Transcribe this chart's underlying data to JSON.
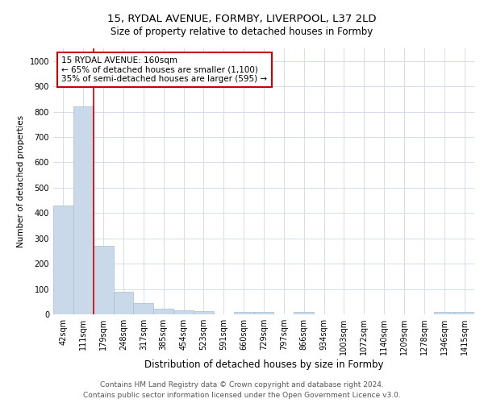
{
  "title1": "15, RYDAL AVENUE, FORMBY, LIVERPOOL, L37 2LD",
  "title2": "Size of property relative to detached houses in Formby",
  "xlabel": "Distribution of detached houses by size in Formby",
  "ylabel": "Number of detached properties",
  "categories": [
    "42sqm",
    "111sqm",
    "179sqm",
    "248sqm",
    "317sqm",
    "385sqm",
    "454sqm",
    "523sqm",
    "591sqm",
    "660sqm",
    "729sqm",
    "797sqm",
    "866sqm",
    "934sqm",
    "1003sqm",
    "1072sqm",
    "1140sqm",
    "1209sqm",
    "1278sqm",
    "1346sqm",
    "1415sqm"
  ],
  "values": [
    430,
    820,
    270,
    90,
    46,
    22,
    16,
    12,
    0,
    10,
    10,
    0,
    9,
    0,
    0,
    0,
    0,
    0,
    0,
    8,
    8
  ],
  "bar_color": "#c9d9ea",
  "bar_edge_color": "#a8bdd0",
  "vline_x": 1.5,
  "vline_color": "#cc0000",
  "annotation_text": "15 RYDAL AVENUE: 160sqm\n← 65% of detached houses are smaller (1,100)\n35% of semi-detached houses are larger (595) →",
  "annotation_box_color": "#ffffff",
  "annotation_box_edge": "#cc0000",
  "ylim": [
    0,
    1050
  ],
  "yticks": [
    0,
    100,
    200,
    300,
    400,
    500,
    600,
    700,
    800,
    900,
    1000
  ],
  "footnote": "Contains HM Land Registry data © Crown copyright and database right 2024.\nContains public sector information licensed under the Open Government Licence v3.0.",
  "bg_color": "#ffffff",
  "grid_color": "#d0d8e8",
  "title1_fontsize": 9.5,
  "title2_fontsize": 8.5,
  "xlabel_fontsize": 8.5,
  "ylabel_fontsize": 7.5,
  "tick_fontsize": 7,
  "annotation_fontsize": 7.5,
  "footnote_fontsize": 6.5
}
